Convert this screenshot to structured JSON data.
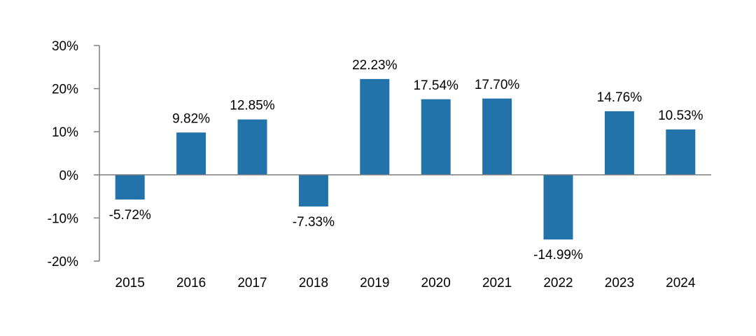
{
  "chart_data": {
    "type": "bar",
    "title": "",
    "xlabel": "",
    "ylabel": "",
    "categories": [
      "2015",
      "2016",
      "2017",
      "2018",
      "2019",
      "2020",
      "2021",
      "2022",
      "2023",
      "2024"
    ],
    "values": [
      -5.72,
      9.82,
      12.85,
      -7.33,
      22.23,
      17.54,
      17.7,
      -14.99,
      14.76,
      10.53
    ],
    "data_labels": [
      "-5.72%",
      "9.82%",
      "12.85%",
      "-7.33%",
      "22.23%",
      "17.54%",
      "17.70%",
      "-14.99%",
      "14.76%",
      "10.53%"
    ],
    "y_ticks": [
      30,
      20,
      10,
      0,
      -10,
      -20
    ],
    "y_tick_labels": [
      "30%",
      "20%",
      "10%",
      "0%",
      "-10%",
      "-20%"
    ],
    "ylim": [
      -20,
      30
    ],
    "bar_color": "#2173a9",
    "axis_color": "#7f7f7f",
    "grid": false,
    "legend": "none"
  }
}
